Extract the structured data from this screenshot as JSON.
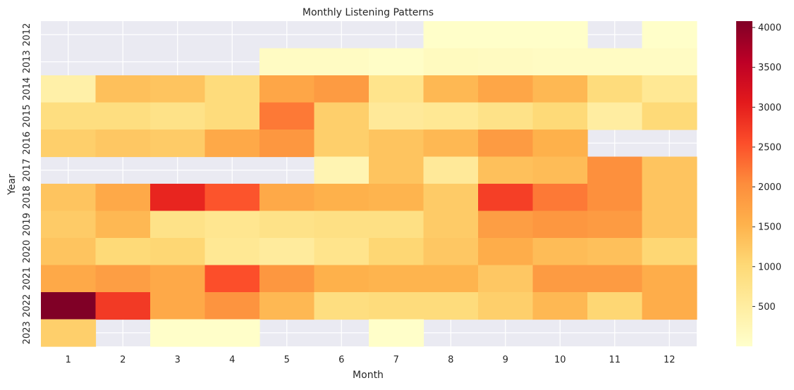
{
  "chart_data": {
    "type": "heatmap",
    "title": "Monthly Listening Patterns",
    "xlabel": "Month",
    "ylabel": "Year",
    "x_categories": [
      "1",
      "2",
      "3",
      "4",
      "5",
      "6",
      "7",
      "8",
      "9",
      "10",
      "11",
      "12"
    ],
    "y_categories": [
      "2012",
      "2013",
      "2014",
      "2015",
      "2016",
      "2017",
      "2018",
      "2019",
      "2020",
      "2021",
      "2022",
      "2023"
    ],
    "colorbar": {
      "min": 0,
      "max": 4080,
      "ticks": [
        500,
        1000,
        1500,
        2000,
        2500,
        3000,
        3500,
        4000
      ]
    },
    "colormap": "YlOrRd",
    "missing_color": "#EAEAF2",
    "values": [
      [
        null,
        null,
        null,
        null,
        null,
        null,
        null,
        30,
        30,
        30,
        null,
        30
      ],
      [
        null,
        null,
        null,
        null,
        100,
        100,
        60,
        150,
        130,
        100,
        100,
        100
      ],
      [
        420,
        1350,
        1300,
        950,
        1700,
        1850,
        750,
        1450,
        1700,
        1450,
        950,
        650
      ],
      [
        900,
        900,
        800,
        950,
        2200,
        1150,
        600,
        650,
        800,
        1000,
        500,
        1000
      ],
      [
        1150,
        1250,
        1200,
        1650,
        1900,
        1150,
        1300,
        1450,
        1850,
        1550,
        null,
        null
      ],
      [
        null,
        null,
        null,
        null,
        null,
        300,
        1300,
        600,
        1350,
        1400,
        2000,
        1300
      ],
      [
        1300,
        1650,
        2950,
        2500,
        1650,
        1550,
        1500,
        1200,
        2700,
        2200,
        2000,
        1300
      ],
      [
        1200,
        1450,
        800,
        700,
        800,
        850,
        850,
        1200,
        1800,
        1900,
        1850,
        1300
      ],
      [
        1300,
        1000,
        1050,
        650,
        550,
        750,
        1050,
        1250,
        1600,
        1400,
        1350,
        1050
      ],
      [
        1650,
        1800,
        1650,
        2550,
        1900,
        1550,
        1500,
        1500,
        1250,
        1850,
        1850,
        1600
      ],
      [
        4080,
        2750,
        1650,
        1950,
        1450,
        900,
        950,
        950,
        1150,
        1450,
        1050,
        1600
      ],
      [
        1150,
        null,
        30,
        30,
        null,
        null,
        30,
        null,
        null,
        null,
        null,
        null
      ]
    ]
  }
}
